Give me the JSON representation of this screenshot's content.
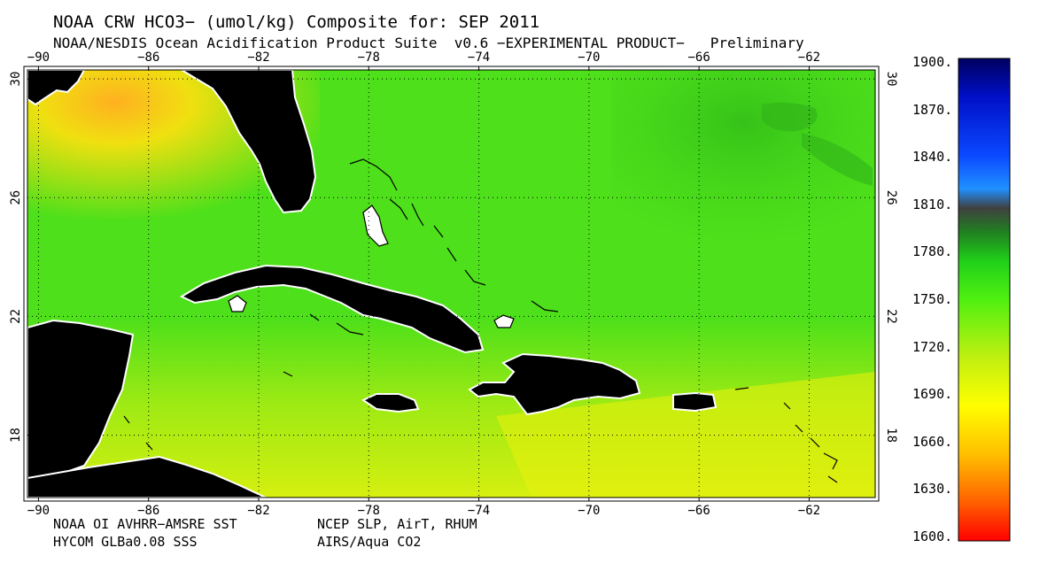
{
  "header": {
    "title": "NOAA CRW HCO3− (umol/kg) Composite for: SEP 2011",
    "subtitle": "NOAA/NESDIS Ocean Acidification Product Suite  v0.6 −EXPERIMENTAL PRODUCT−   Preliminary"
  },
  "map": {
    "lon_range": [
      -90.4,
      -59.6
    ],
    "lat_range": [
      15.9,
      30.3
    ],
    "lon_ticks": [
      "−90",
      "−86",
      "−82",
      "−78",
      "−74",
      "−70",
      "−66",
      "−62"
    ],
    "lon_tick_values": [
      -90,
      -86,
      -82,
      -78,
      -74,
      -70,
      -66,
      -62
    ],
    "lat_ticks": [
      "30",
      "26",
      "22",
      "18"
    ],
    "lat_tick_values": [
      30,
      26,
      22,
      18
    ],
    "grid": "dotted",
    "land_color": "#000000",
    "ocean_base_color": "#4ee01a"
  },
  "colorbar": {
    "labels": [
      "1900.",
      "1870.",
      "1840.",
      "1810.",
      "1780.",
      "1750.",
      "1720.",
      "1690.",
      "1660.",
      "1630.",
      "1600."
    ],
    "values": [
      1900,
      1870,
      1840,
      1810,
      1780,
      1750,
      1720,
      1690,
      1660,
      1630,
      1600
    ]
  },
  "credits": {
    "sst": "NOAA OI AVHRR−AMSRE SST",
    "met": "NCEP SLP, AirT, RHUM",
    "sss": "HYCOM GLBa0.08 SSS",
    "co2": "AIRS/Aqua CO2"
  }
}
